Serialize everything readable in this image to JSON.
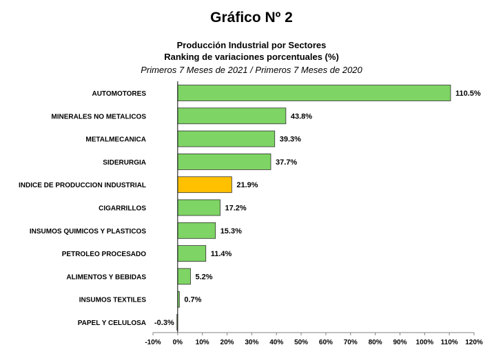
{
  "header": {
    "title": "Gráfico Nº 2",
    "subtitle_line1": "Producción Industrial por Sectores",
    "subtitle_line2": "Ranking de variaciones porcentuales (%)",
    "subtitle_line3": "Primeros 7 Meses de 2021 / Primeros 7 Meses de 2020"
  },
  "chart_data": {
    "type": "bar",
    "orientation": "horizontal",
    "categories": [
      "AUTOMOTORES",
      "MINERALES NO METALICOS",
      "METALMECANICA",
      "SIDERURGIA",
      "INDICE DE PRODUCCION INDUSTRIAL",
      "CIGARRILLOS",
      "INSUMOS QUIMICOS Y PLASTICOS",
      "PETROLEO PROCESADO",
      "ALIMENTOS Y BEBIDAS",
      "INSUMOS TEXTILES",
      "PAPEL Y CELULOSA"
    ],
    "values": [
      110.5,
      43.8,
      39.3,
      37.7,
      21.9,
      17.2,
      15.3,
      11.4,
      5.2,
      0.7,
      -0.3
    ],
    "value_labels": [
      "110.5%",
      "43.8%",
      "39.3%",
      "37.7%",
      "21.9%",
      "17.2%",
      "15.3%",
      "11.4%",
      "5.2%",
      "0.7%",
      "-0.3%"
    ],
    "highlight_category": "INDICE DE PRODUCCION INDUSTRIAL",
    "xlim": [
      -10,
      120
    ],
    "xticks": [
      -10,
      0,
      10,
      20,
      30,
      40,
      50,
      60,
      70,
      80,
      90,
      100,
      110,
      120
    ],
    "xtick_labels": [
      "-10%",
      "0%",
      "10%",
      "20%",
      "30%",
      "40%",
      "50%",
      "60%",
      "70%",
      "80%",
      "90%",
      "100%",
      "110%",
      "120%"
    ],
    "grid": false,
    "colors": {
      "bar": "#7ed464",
      "highlight": "#ffc000",
      "bar_stroke": "#2f2f2f",
      "axis": "#808080"
    }
  }
}
